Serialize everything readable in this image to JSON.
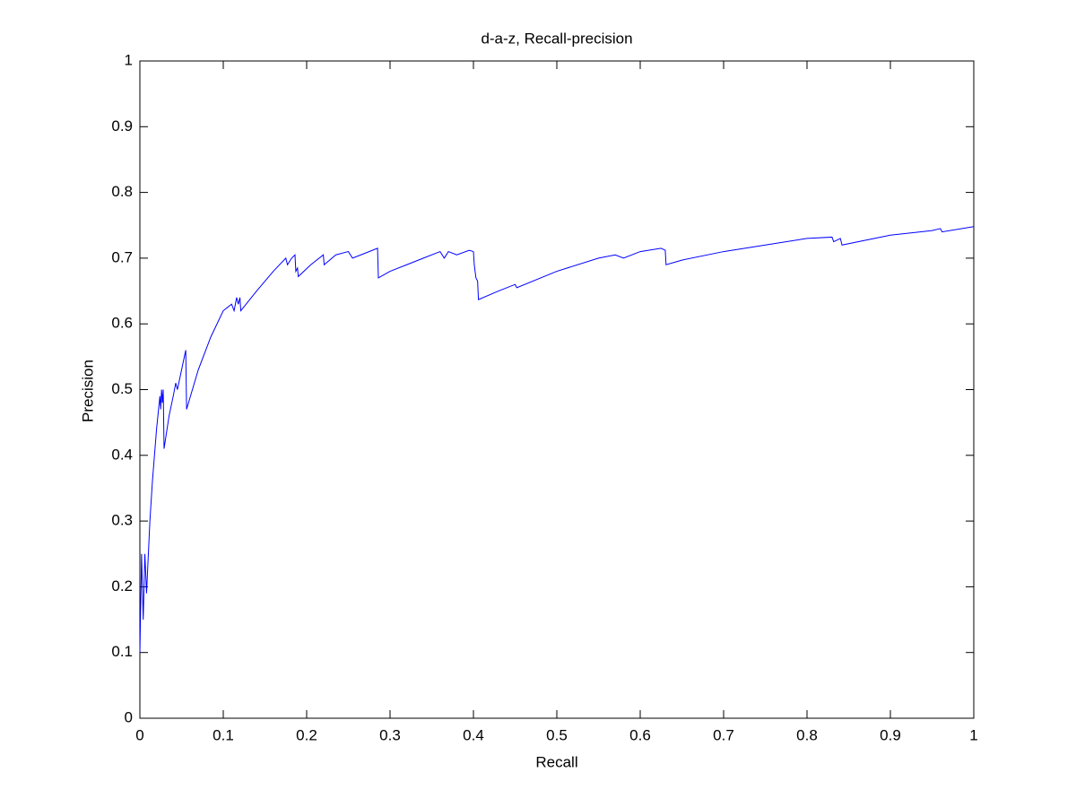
{
  "chart_data": {
    "type": "line",
    "title": "d-a-z, Recall-precision",
    "x_label": "Recall",
    "y_label": "Precision",
    "x": [
      0,
      0.002,
      0.004,
      0.006,
      0.008,
      0.012,
      0.015,
      0.02,
      0.024,
      0.025,
      0.026,
      0.027,
      0.028,
      0.029,
      0.035,
      0.04,
      0.043,
      0.045,
      0.055,
      0.056,
      0.07,
      0.085,
      0.1,
      0.11,
      0.113,
      0.116,
      0.118,
      0.12,
      0.121,
      0.14,
      0.16,
      0.175,
      0.177,
      0.182,
      0.186,
      0.187,
      0.189,
      0.19,
      0.205,
      0.22,
      0.221,
      0.235,
      0.25,
      0.255,
      0.265,
      0.285,
      0.286,
      0.3,
      0.32,
      0.34,
      0.36,
      0.365,
      0.37,
      0.38,
      0.395,
      0.4,
      0.401,
      0.403,
      0.405,
      0.406,
      0.43,
      0.45,
      0.452,
      0.5,
      0.55,
      0.57,
      0.58,
      0.6,
      0.625,
      0.63,
      0.631,
      0.65,
      0.7,
      0.75,
      0.8,
      0.83,
      0.832,
      0.84,
      0.842,
      0.9,
      0.95,
      0.96,
      0.962,
      1
    ],
    "series": [
      {
        "color": "#0000ff",
        "values": [
          0.1,
          0.25,
          0.15,
          0.25,
          0.19,
          0.3,
          0.36,
          0.44,
          0.49,
          0.47,
          0.5,
          0.48,
          0.5,
          0.41,
          0.46,
          0.49,
          0.51,
          0.5,
          0.56,
          0.47,
          0.53,
          0.58,
          0.62,
          0.63,
          0.62,
          0.64,
          0.63,
          0.64,
          0.62,
          0.65,
          0.68,
          0.7,
          0.69,
          0.7,
          0.705,
          0.68,
          0.685,
          0.672,
          0.69,
          0.705,
          0.69,
          0.705,
          0.71,
          0.7,
          0.705,
          0.715,
          0.67,
          0.68,
          0.69,
          0.7,
          0.71,
          0.7,
          0.71,
          0.705,
          0.712,
          0.71,
          0.69,
          0.67,
          0.665,
          0.637,
          0.65,
          0.66,
          0.655,
          0.68,
          0.7,
          0.705,
          0.7,
          0.71,
          0.715,
          0.712,
          0.69,
          0.697,
          0.71,
          0.72,
          0.73,
          0.732,
          0.725,
          0.73,
          0.72,
          0.735,
          0.742,
          0.745,
          0.74,
          0.748
        ]
      }
    ],
    "xlim": [
      0,
      1
    ],
    "ylim": [
      0,
      1
    ],
    "xticks": [
      0,
      0.1,
      0.2,
      0.3,
      0.4,
      0.5,
      0.6,
      0.7,
      0.8,
      0.9,
      1
    ],
    "yticks": [
      0,
      0.1,
      0.2,
      0.3,
      0.4,
      0.5,
      0.6,
      0.7,
      0.8,
      0.9,
      1
    ]
  }
}
